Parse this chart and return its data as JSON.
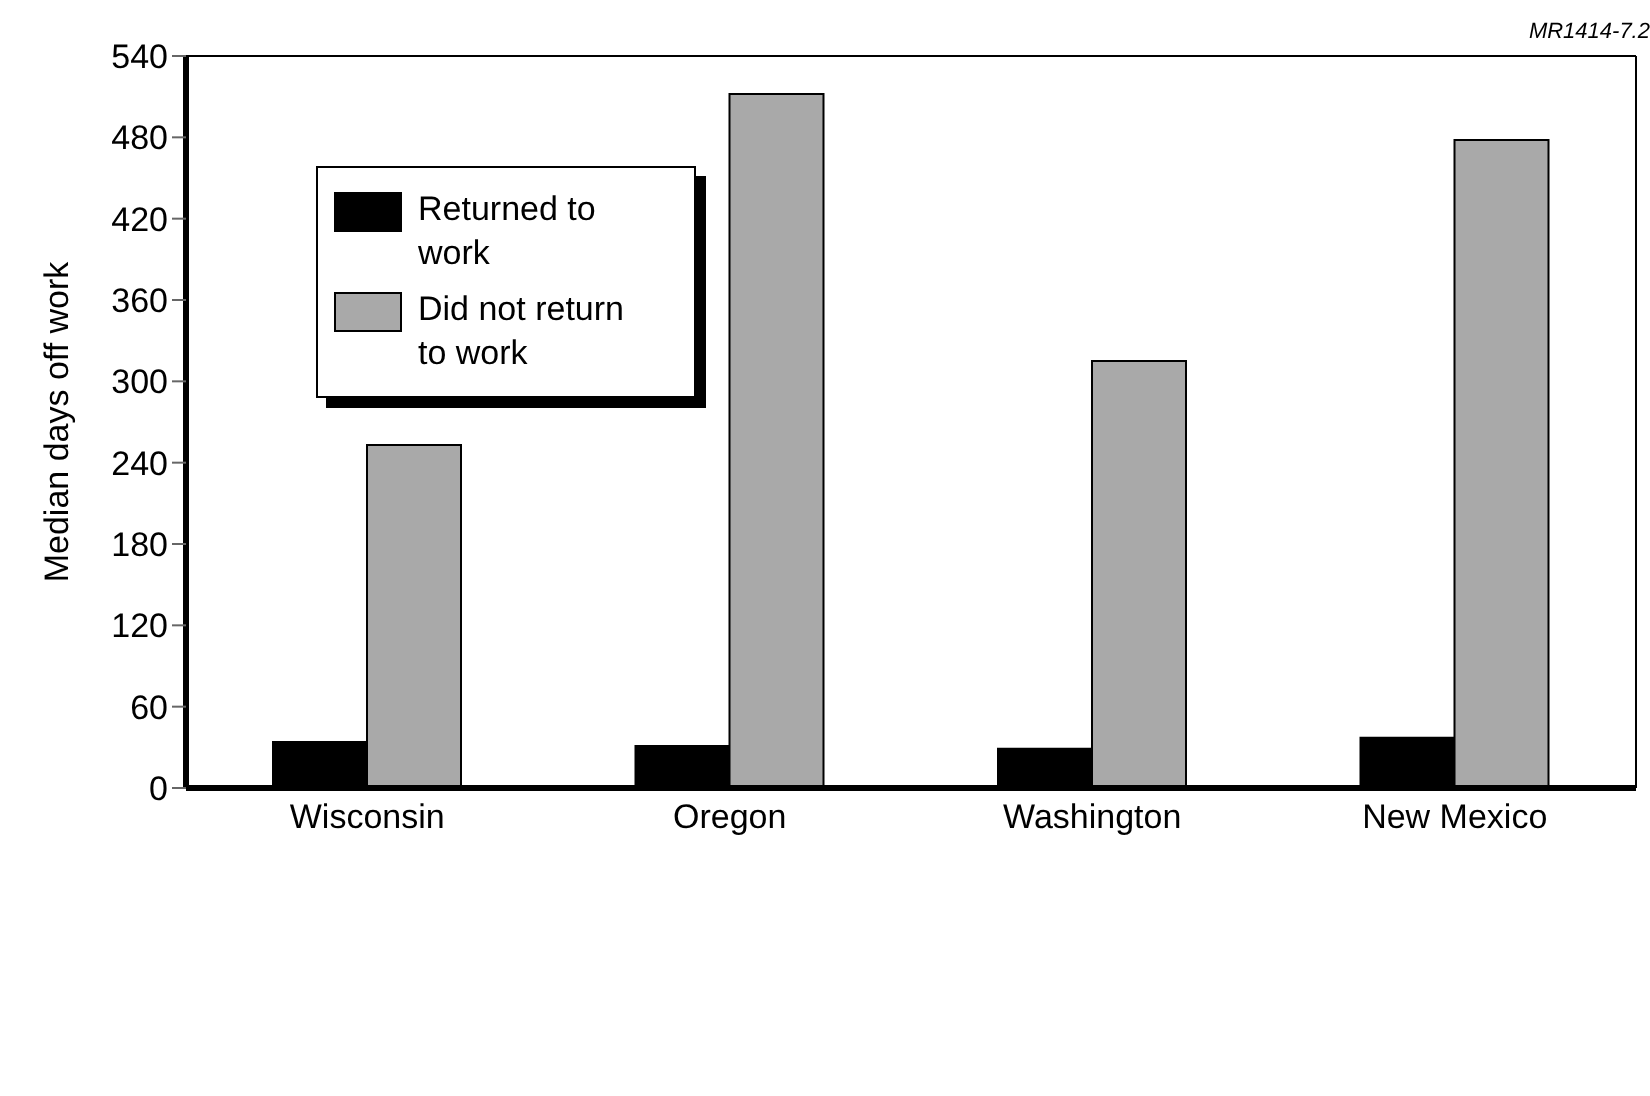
{
  "chart_data": {
    "type": "bar",
    "ylabel": "Median days off work",
    "annotations": [
      "MR1414-7.2"
    ],
    "categories": [
      "Wisconsin",
      "Oregon",
      "Washington",
      "New Mexico"
    ],
    "series": [
      {
        "name": "Returned to work",
        "color": "#000000",
        "values": [
          34,
          31,
          29,
          37
        ]
      },
      {
        "name": "Did not return to work",
        "color": "#a9a9a9",
        "values": [
          253,
          512,
          315,
          478
        ]
      }
    ],
    "ylim": [
      0,
      540
    ],
    "yticks": [
      0,
      60,
      120,
      180,
      240,
      300,
      360,
      420,
      480,
      540
    ],
    "grid": false,
    "legend": "top left"
  }
}
